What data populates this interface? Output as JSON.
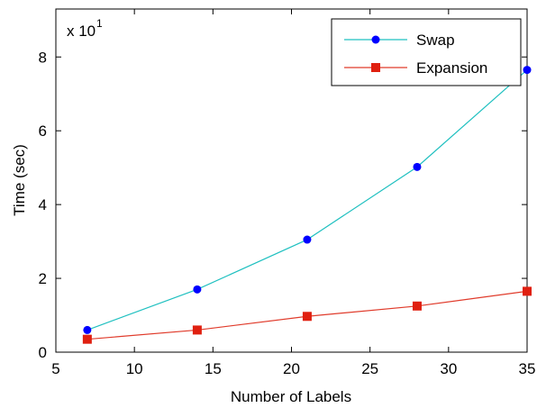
{
  "chart_data": {
    "type": "line",
    "xlabel": "Number of Labels",
    "ylabel": "Time (sec)",
    "y_exponent_label": "x 10",
    "y_exponent_power": "1",
    "xlim": [
      5,
      35
    ],
    "ylim": [
      0,
      9.3
    ],
    "x_ticks": [
      "5",
      "10",
      "15",
      "20",
      "25",
      "30",
      "35"
    ],
    "y_ticks": [
      "0",
      "2",
      "4",
      "6",
      "8"
    ],
    "grid": false,
    "legend_position": "top-right",
    "x": [
      7,
      14,
      21,
      28,
      35
    ],
    "series": [
      {
        "name": "Swap",
        "values": [
          0.6,
          1.7,
          3.05,
          5.02,
          7.65
        ],
        "color": "#1fc0c0",
        "marker_color": "#0000ff",
        "marker": "circle"
      },
      {
        "name": "Expansion",
        "values": [
          0.35,
          0.6,
          0.97,
          1.25,
          1.65
        ],
        "color": "#e03b2b",
        "marker_color": "#e02010",
        "marker": "square"
      }
    ]
  }
}
